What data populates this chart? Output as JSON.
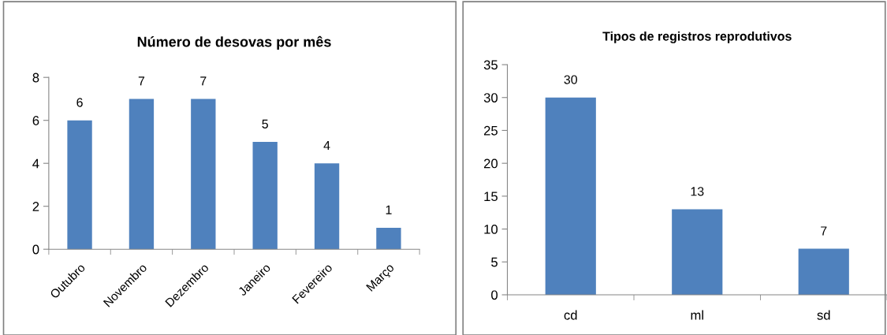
{
  "chart_data": [
    {
      "type": "bar",
      "title": "Número de desovas por mês",
      "categories": [
        "Outubro",
        "Novembro",
        "Dezembro",
        "Janeiro",
        "Fevereiro",
        "Março"
      ],
      "values": [
        6,
        7,
        7,
        5,
        4,
        1
      ],
      "color": "#4f81bd",
      "ylim": [
        0,
        8
      ],
      "yticks": [
        0,
        2,
        4,
        6,
        8
      ],
      "data_labels": true,
      "grid": false,
      "legend": false
    },
    {
      "type": "bar",
      "title": "Tipos de registros reprodutivos",
      "categories": [
        "cd",
        "ml",
        "sd"
      ],
      "values": [
        30,
        13,
        7
      ],
      "color": "#4f81bd",
      "ylim": [
        0,
        35
      ],
      "yticks": [
        0,
        5,
        10,
        15,
        20,
        25,
        30,
        35
      ],
      "data_labels": true,
      "grid": false,
      "legend": false
    }
  ]
}
